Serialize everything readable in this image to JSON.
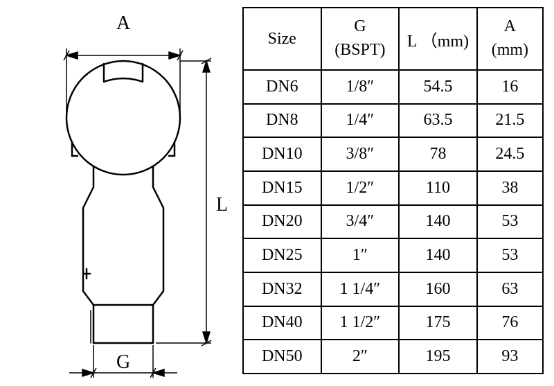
{
  "diagram": {
    "label_A": "A",
    "label_L": "L",
    "label_G": "G",
    "stroke_color": "#000000",
    "stroke_width_main": 2.5,
    "stroke_width_dim": 1.5,
    "background": "#ffffff"
  },
  "table": {
    "border_color": "#000000",
    "border_width": 2,
    "font_size": 24,
    "columns": [
      {
        "header_top": "",
        "header_bottom": "Size",
        "single": true,
        "label": "Size",
        "width": "26%"
      },
      {
        "header_top": "G",
        "header_bottom": "(BSPT)",
        "single": false,
        "width": "26%"
      },
      {
        "header_top": "",
        "header_bottom": "L （mm)",
        "single": true,
        "label": "L （mm)",
        "width": "26%"
      },
      {
        "header_top": "A",
        "header_bottom": "(mm)",
        "single": false,
        "width": "22%"
      }
    ],
    "rows": [
      [
        "DN6",
        "1/8″",
        "54.5",
        "16"
      ],
      [
        "DN8",
        "1/4″",
        "63.5",
        "21.5"
      ],
      [
        "DN10",
        "3/8″",
        "78",
        "24.5"
      ],
      [
        "DN15",
        "1/2″",
        "110",
        "38"
      ],
      [
        "DN20",
        "3/4″",
        "140",
        "53"
      ],
      [
        "DN25",
        "1″",
        "140",
        "53"
      ],
      [
        "DN32",
        "1 1/4″",
        "160",
        "63"
      ],
      [
        "DN40",
        "1 1/2″",
        "175",
        "76"
      ],
      [
        "DN50",
        "2″",
        "195",
        "93"
      ]
    ]
  }
}
